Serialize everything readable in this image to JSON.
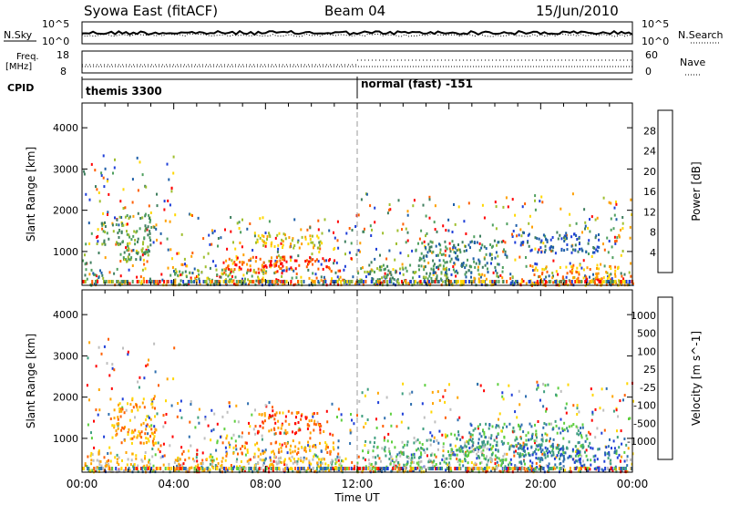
{
  "header": {
    "station": "Syowa East (fitACF)",
    "beam": "Beam 04",
    "date": "15/Jun/2010"
  },
  "status_panels": {
    "nsky_label": "N.Sky",
    "nsky_ticks": [
      "10^5",
      "10^0"
    ],
    "nsearch_label": "N.Search",
    "nsearch_ticks": [
      "10^5",
      "10^0"
    ],
    "freq_label": "Freq.",
    "freq_unit": "[MHz]",
    "freq_ticks": [
      "18",
      "8"
    ],
    "nave_label": "Nave",
    "nave_ticks": [
      "60",
      "0"
    ],
    "cpid_label": "CPID",
    "cpid_segments": [
      {
        "label": "themis 3300",
        "start_hour": 0
      },
      {
        "label": "normal (fast) -151",
        "start_hour": 12
      }
    ]
  },
  "chart_data": [
    {
      "type": "heatmap",
      "name": "power",
      "ylabel": "Slant Range [km]",
      "yticks": [
        1000,
        2000,
        3000,
        4000
      ],
      "ylim": [
        180,
        4600
      ],
      "colorbar_label": "Power [dB]",
      "colorbar_ticks": [
        "4",
        "8",
        "12",
        "16",
        "20",
        "24",
        "28"
      ],
      "colors": [
        "#1f3fd8",
        "#1f5fa8",
        "#3f7f5f",
        "#4f9f5f",
        "#9fbf2f",
        "#ffd700",
        "#ff9f00",
        "#ff5f00",
        "#ff0000"
      ],
      "echo_bands": [
        {
          "x": [
            0.3,
            0.9
          ],
          "y": [
            200,
            600
          ],
          "level": 2
        },
        {
          "x": [
            0.8,
            1.6
          ],
          "y": [
            1200,
            1800
          ],
          "level": 3
        },
        {
          "x": [
            1.5,
            3.0
          ],
          "y": [
            800,
            2000
          ],
          "level": 3
        },
        {
          "x": [
            3.8,
            8.0
          ],
          "y": [
            300,
            600
          ],
          "level": 4
        },
        {
          "x": [
            6.0,
            9.0
          ],
          "y": [
            500,
            900
          ],
          "level": 7
        },
        {
          "x": [
            7.5,
            10.5
          ],
          "y": [
            1100,
            1500
          ],
          "level": 5
        },
        {
          "x": [
            8.0,
            11.0
          ],
          "y": [
            600,
            900
          ],
          "level": 8
        },
        {
          "x": [
            12.5,
            16.0
          ],
          "y": [
            250,
            700
          ],
          "level": 3
        },
        {
          "x": [
            14.5,
            18.5
          ],
          "y": [
            500,
            1300
          ],
          "level": 2
        },
        {
          "x": [
            19.5,
            23.5
          ],
          "y": [
            200,
            700
          ],
          "level": 6
        },
        {
          "x": [
            19.0,
            22.5
          ],
          "y": [
            1000,
            1500
          ],
          "level": 1
        }
      ]
    },
    {
      "type": "heatmap",
      "name": "velocity",
      "ylabel": "Slant Range [km]",
      "xlabel": "Time UT",
      "xticks": [
        "00:00",
        "04:00",
        "08:00",
        "12:00",
        "16:00",
        "20:00",
        "00:00"
      ],
      "xlim": [
        0,
        24
      ],
      "yticks": [
        1000,
        2000,
        3000,
        4000
      ],
      "ylim": [
        180,
        4600
      ],
      "colorbar_label": "Velocity [m s^-1]",
      "colorbar_ticks": [
        "1000",
        "500",
        "100",
        "25",
        "-25",
        "-100",
        "-500",
        "-1000"
      ],
      "colors": [
        "#1f3fd8",
        "#2f6faf",
        "#3f9f7f",
        "#5fcf3f",
        "#bfbfbf",
        "#ffd700",
        "#ffa500",
        "#ff5f00",
        "#ff0000"
      ],
      "echo_bands": [
        {
          "x": [
            0.3,
            3.0
          ],
          "y": [
            200,
            700
          ],
          "level": 5
        },
        {
          "x": [
            1.2,
            3.2
          ],
          "y": [
            900,
            2000
          ],
          "level": 6
        },
        {
          "x": [
            4.0,
            11.5
          ],
          "y": [
            250,
            600
          ],
          "level": 5
        },
        {
          "x": [
            6.0,
            11.0
          ],
          "y": [
            650,
            950
          ],
          "level": 6
        },
        {
          "x": [
            7.5,
            10.5
          ],
          "y": [
            1100,
            1700
          ],
          "level": 7
        },
        {
          "x": [
            12.2,
            18.5
          ],
          "y": [
            300,
            1000
          ],
          "level": 3
        },
        {
          "x": [
            16.0,
            22.0
          ],
          "y": [
            600,
            1400
          ],
          "level": 2
        },
        {
          "x": [
            19.0,
            23.5
          ],
          "y": [
            250,
            900
          ],
          "level": 1
        }
      ]
    }
  ]
}
